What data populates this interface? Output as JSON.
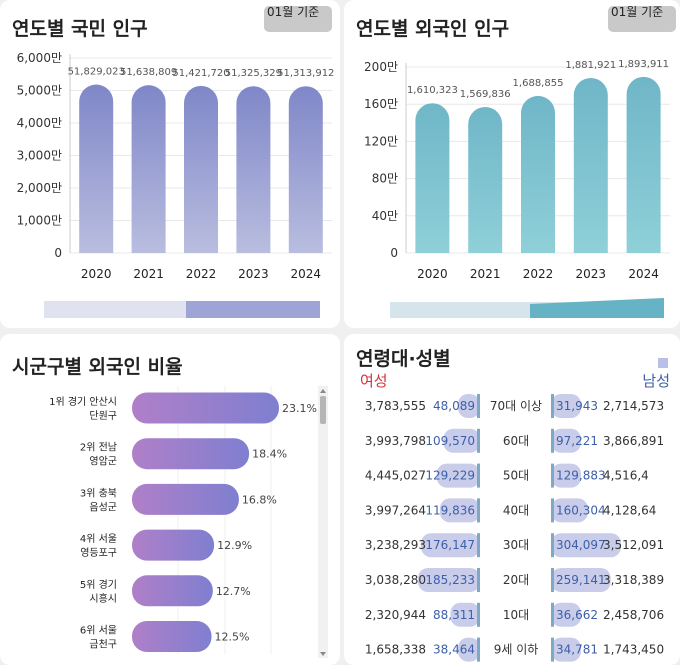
{
  "national": {
    "title": "연도별 국민 인구",
    "chip_label": "01월 기준",
    "chart_data": {
      "type": "bar",
      "categories": [
        "2020",
        "2021",
        "2022",
        "2023",
        "2024"
      ],
      "values": [
        51829023,
        51638809,
        51421720,
        51325329,
        51313912
      ],
      "value_labels": [
        "51,829,023",
        "51,638,809",
        "51,421,720",
        "51,325,329",
        "51,313,912"
      ],
      "yticks": [
        "0",
        "1,000만",
        "2,000만",
        "3,000만",
        "4,000만",
        "5,000만",
        "6,000만"
      ],
      "ylim": [
        0,
        60000000
      ],
      "color": "#7f87c8"
    }
  },
  "foreign": {
    "title": "연도별 외국인 인구",
    "chip_label": "01월 기준",
    "chart_data": {
      "type": "bar",
      "categories": [
        "2020",
        "2021",
        "2022",
        "2023",
        "2024"
      ],
      "values": [
        1610323,
        1569836,
        1688855,
        1881921,
        1893911
      ],
      "value_labels": [
        "1,610,323",
        "1,569,836",
        "1,688,855",
        "1,881,921",
        "1,893,911"
      ],
      "yticks": [
        "0",
        "40만",
        "80만",
        "120만",
        "160만",
        "200만"
      ],
      "ylim": [
        0,
        2000000
      ],
      "color": "#6fb6c8"
    }
  },
  "ratio": {
    "title": "시군구별 외국인 비율",
    "chart_data": {
      "type": "bar",
      "orientation": "horizontal",
      "categories": [
        [
          "1위 경기 안산시",
          "단원구"
        ],
        [
          "2위 전남",
          "영암군"
        ],
        [
          "3위 충북",
          "음성군"
        ],
        [
          "4위 서울",
          "영등포구"
        ],
        [
          "5위 경기",
          "시흥시"
        ],
        [
          "6위 서울",
          "금천구"
        ]
      ],
      "values": [
        23.1,
        18.4,
        16.8,
        12.9,
        12.7,
        12.5
      ],
      "value_labels": [
        "23.1%",
        "18.4%",
        "16.8%",
        "12.9%",
        "12.7%",
        "12.5%"
      ],
      "color_start": "#b07fc8",
      "color_end": "#7f7fd0"
    }
  },
  "agegender": {
    "title": "연령대·성별",
    "female_label": "여성",
    "male_label": "남성",
    "chart_data": {
      "type": "bar",
      "orientation": "horizontal",
      "categories": [
        "70대 이상",
        "60대",
        "50대",
        "40대",
        "30대",
        "20대",
        "10대",
        "9세 이하"
      ],
      "series": [
        {
          "name": "여성",
          "national_labels": [
            "3,783,555",
            "3,993,798",
            "4,445,027",
            "3,997,264",
            "3,238,293",
            "3,038,280",
            "2,320,944",
            "1,658,338"
          ],
          "foreign": [
            48089,
            109570,
            129229,
            119836,
            176147,
            185233,
            88311,
            38464
          ],
          "foreign_labels": [
            "48,089",
            "109,570",
            "129,229",
            "119,836",
            "176,147",
            "185,233",
            "88,311",
            "38,464"
          ]
        },
        {
          "name": "남성",
          "national_labels": [
            "2,714,573",
            "3,866,891",
            "4,516,4",
            "4,128,64",
            "3,512,091",
            "3,318,389",
            "2,458,706",
            "1,743,450"
          ],
          "foreign": [
            31943,
            97221,
            129883,
            160304,
            304097,
            259141,
            36662,
            34781
          ],
          "foreign_labels": [
            "31,943",
            "97,221",
            "129,883",
            "160,304",
            "304,097",
            "259,141",
            "36,662",
            "34,781"
          ]
        }
      ],
      "bar_color": "#c9cdea",
      "accent_color": "#7ea7c8"
    }
  }
}
